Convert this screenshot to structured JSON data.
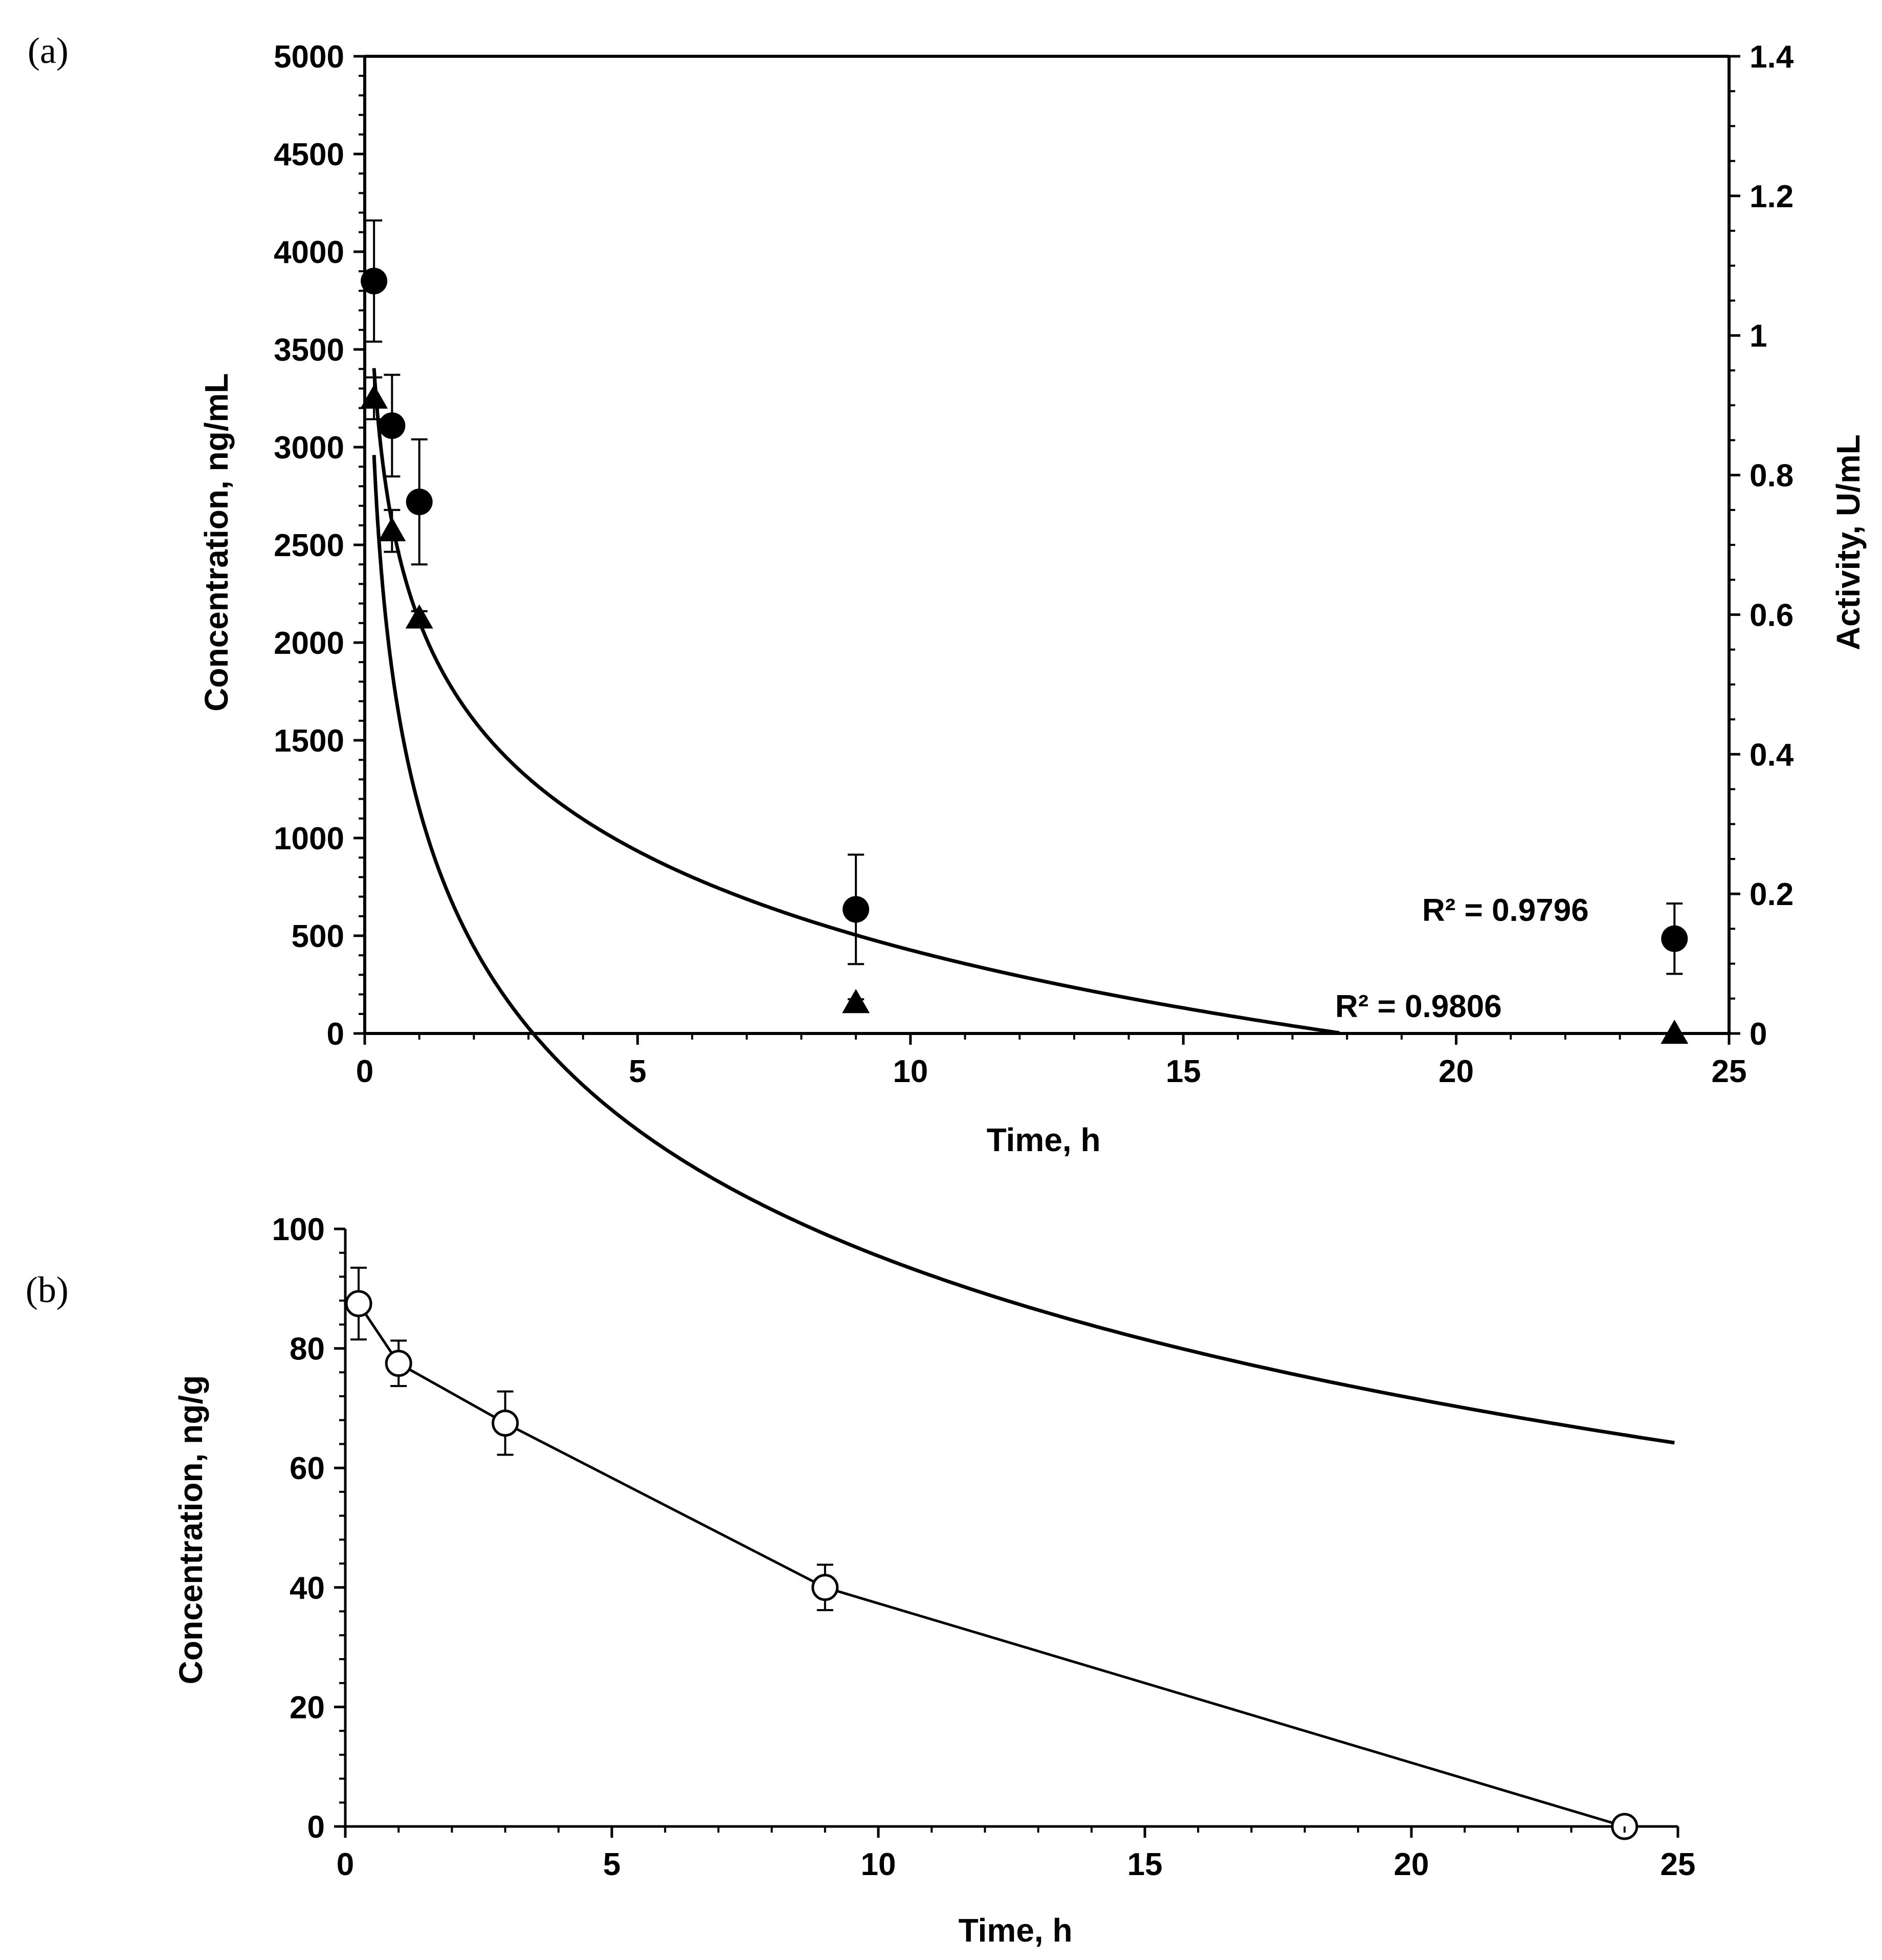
{
  "chart_data": [
    {
      "panel_label": "(a)",
      "type": "scatter",
      "xlabel": "Time, h",
      "ylabel": "Concentration, ng/mL",
      "y2label": "Activity, U/mL",
      "xlim": [
        0,
        25
      ],
      "ylim": [
        0,
        5000
      ],
      "y2lim": [
        0,
        1.4
      ],
      "x_ticks": [
        0,
        5,
        10,
        15,
        20,
        25
      ],
      "y_ticks": [
        0,
        500,
        1000,
        1500,
        2000,
        2500,
        3000,
        3500,
        4000,
        4500,
        5000
      ],
      "y2_ticks": [
        0,
        0.2,
        0.4,
        0.6,
        0.8,
        1,
        1.2,
        1.4
      ],
      "grid": false,
      "series": [
        {
          "name": "Concentration",
          "axis": "left",
          "marker": "filled-circle",
          "x": [
            0.17,
            0.5,
            1,
            9,
            24
          ],
          "y": [
            3850,
            3110,
            2720,
            635,
            485
          ],
          "err": [
            310,
            260,
            320,
            280,
            180
          ],
          "trendline": {
            "type": "log",
            "a": 1150.5,
            "b": -1021,
            "x_range": [
              0.17,
              24
            ],
            "r2_label": "R² = 0.9796"
          }
        },
        {
          "name": "Activity",
          "axis": "right",
          "marker": "filled-triangle",
          "x": [
            0.17,
            0.5,
            1,
            9,
            24
          ],
          "y": [
            0.91,
            0.72,
            0.595,
            0.044,
            0.0
          ],
          "err": [
            0.03,
            0.03,
            0.01,
            0.005,
            0.0
          ],
          "trendline": {
            "type": "log",
            "a": 0.5906,
            "b": -0.2046,
            "x_range": [
              0.17,
              17.86
            ],
            "r2_label": "R² = 0.9806"
          }
        }
      ]
    },
    {
      "panel_label": "(b)",
      "type": "line",
      "xlabel": "Time, h",
      "ylabel": "Concentration, ng/g",
      "xlim": [
        0,
        25
      ],
      "ylim": [
        0,
        100
      ],
      "x_ticks": [
        0,
        5,
        10,
        15,
        20,
        25
      ],
      "y_ticks": [
        0,
        20,
        40,
        60,
        80,
        100
      ],
      "grid": false,
      "series": [
        {
          "name": "Concentration",
          "marker": "open-circle",
          "x": [
            0.25,
            1,
            3,
            9,
            24
          ],
          "y": [
            87.5,
            77.5,
            67.5,
            40,
            0
          ],
          "err": [
            6,
            3.8,
            5.3,
            3.8,
            0
          ]
        }
      ]
    }
  ]
}
